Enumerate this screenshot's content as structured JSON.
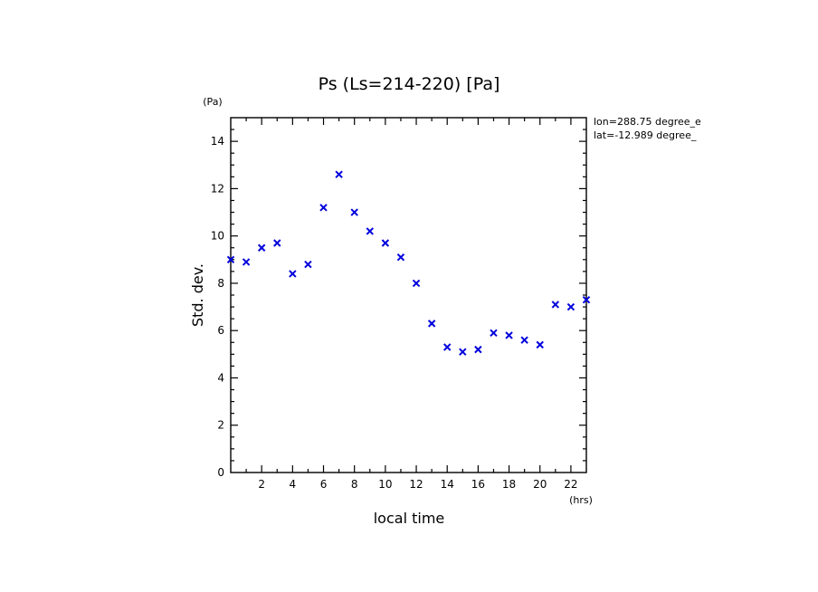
{
  "chart_data": {
    "type": "scatter",
    "title": "Ps (Ls=214-220) [Pa]",
    "xlabel": "local time",
    "ylabel": "Std. dev.",
    "x_unit": "(hrs)",
    "y_unit": "(Pa)",
    "xlim": [
      0,
      23
    ],
    "ylim": [
      0,
      15
    ],
    "x_major_ticks": [
      2,
      4,
      6,
      8,
      10,
      12,
      14,
      16,
      18,
      20,
      22
    ],
    "y_major_ticks": [
      0,
      2,
      4,
      6,
      8,
      10,
      12,
      14
    ],
    "annotations": [
      "lon=288.75 degree_e",
      "lat=-12.989 degree_"
    ],
    "marker": "x",
    "marker_color": "#0000dd",
    "series": [
      {
        "x": [
          0.0,
          1.0,
          2.0,
          3.0,
          4.0,
          5.0,
          6.0,
          7.0,
          8.0,
          9.0,
          10.0,
          11.0,
          12.0,
          13.0,
          14.0,
          15.0,
          16.0,
          17.0,
          18.0,
          19.0,
          20.0,
          21.0,
          22.0,
          23.0
        ],
        "y": [
          9.0,
          8.9,
          9.5,
          9.7,
          8.4,
          8.8,
          11.2,
          12.6,
          11.0,
          10.2,
          9.7,
          9.1,
          8.0,
          6.3,
          5.3,
          5.1,
          5.2,
          5.9,
          5.8,
          5.6,
          5.4,
          7.1,
          7.0,
          7.3
        ]
      }
    ]
  }
}
